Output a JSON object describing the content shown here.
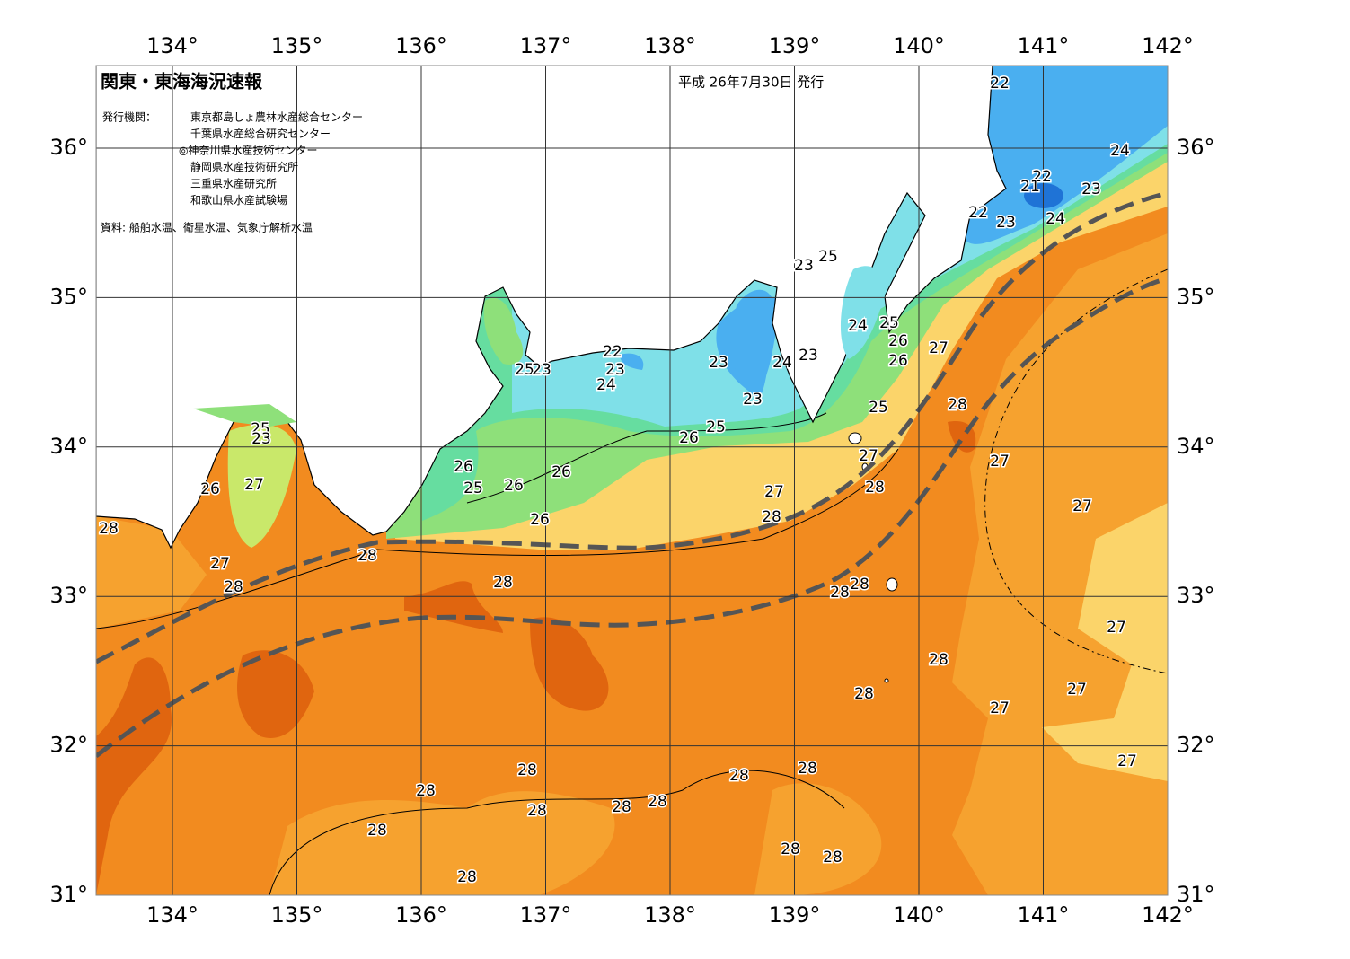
{
  "header": {
    "title": "関東・東海海況速報",
    "issue_date": "平成 26年7月30日 発行",
    "issuers_label": "発行機関：",
    "issuers": [
      "東京都島しょ農林水産総合センター",
      "千葉県水産総合研究センター",
      "◎神奈川県水産技術センター",
      "静岡県水産技術研究所",
      "三重県水産研究所",
      "和歌山県水産試験場"
    ],
    "source": "資料: 船舶水温、衛星水温、気象庁解析水温"
  },
  "map": {
    "lon_ticks": [
      {
        "value": 134,
        "label": "134°"
      },
      {
        "value": 135,
        "label": "135°"
      },
      {
        "value": 136,
        "label": "136°"
      },
      {
        "value": 137,
        "label": "137°"
      },
      {
        "value": 138,
        "label": "138°"
      },
      {
        "value": 139,
        "label": "139°"
      },
      {
        "value": 140,
        "label": "140°"
      },
      {
        "value": 141,
        "label": "141°"
      },
      {
        "value": 142,
        "label": "142°"
      }
    ],
    "lat_ticks": [
      {
        "value": 31,
        "label": "31°"
      },
      {
        "value": 32,
        "label": "32°"
      },
      {
        "value": 33,
        "label": "33°"
      },
      {
        "value": 34,
        "label": "34°"
      },
      {
        "value": 35,
        "label": "35°"
      },
      {
        "value": 36,
        "label": "36°"
      }
    ],
    "isotherm_labels": [
      22,
      24,
      22,
      21,
      23,
      22,
      23,
      24,
      23,
      25,
      25,
      24,
      26,
      27,
      26,
      23,
      24,
      23,
      22,
      23,
      24,
      25,
      23,
      23,
      25,
      28,
      25,
      26,
      27,
      27,
      26,
      26,
      28,
      25,
      26,
      27,
      26,
      27,
      25,
      23,
      27,
      26,
      28,
      28,
      28,
      27,
      28,
      28,
      28,
      28,
      27,
      28,
      27,
      28,
      27,
      27,
      28,
      28,
      28,
      28,
      28,
      28,
      28,
      28,
      28,
      28,
      28,
      28
    ]
  }
}
